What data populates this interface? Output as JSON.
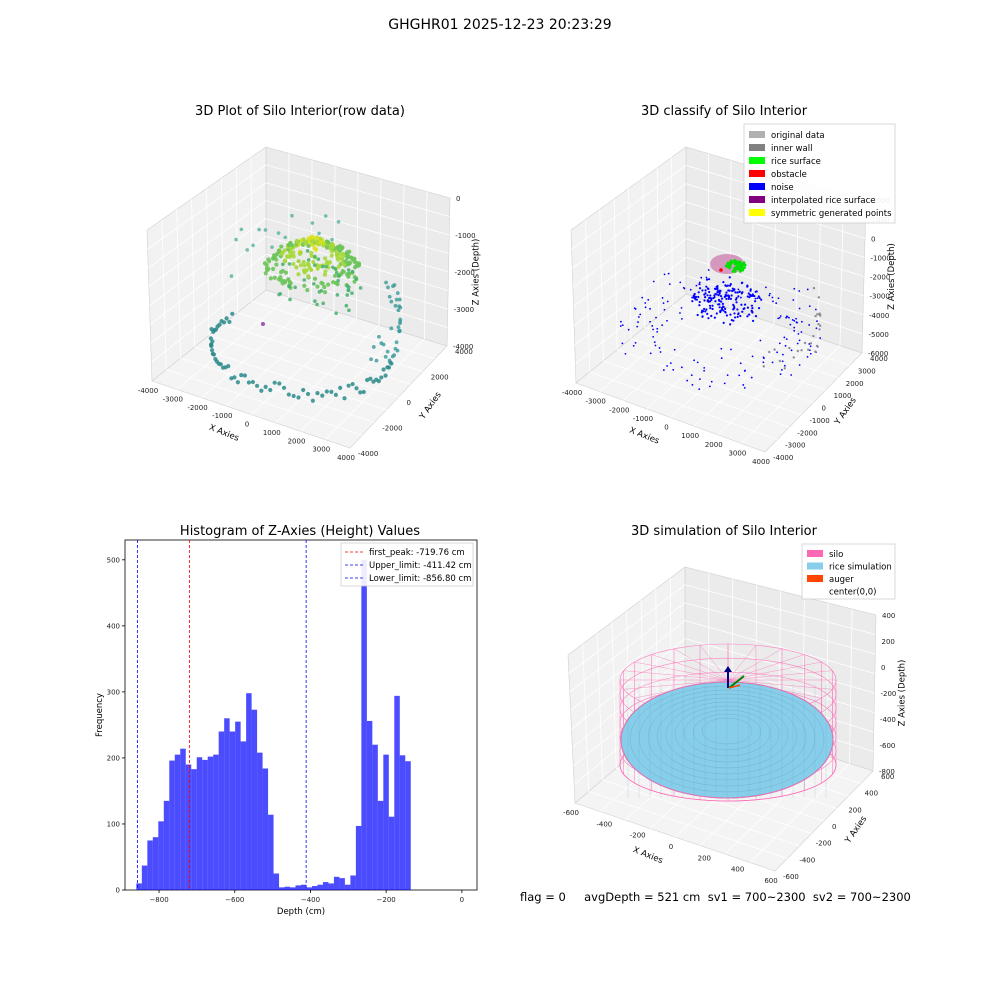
{
  "suptitle": "GHGHR01 2025-12-23 20:23:29",
  "status_text": "flag = 0     avgDepth = 521 cm  sv1 = 700~2300  sv2 = 700~2300",
  "panels": {
    "raw": {
      "title": "3D Plot of Silo Interior(row data)",
      "xlabel": "X Axies",
      "ylabel": "Y Axies",
      "zlabel": "Z Axies (Depth)",
      "xticks": [
        "-4000",
        "-3000",
        "-2000",
        "-1000",
        "0",
        "1000",
        "2000",
        "3000",
        "4000"
      ],
      "yticks": [
        "-4000",
        "-2000",
        "0",
        "2000",
        "4000"
      ],
      "zticks": [
        "0",
        "-1000",
        "-2000",
        "-3000",
        "-4000"
      ]
    },
    "classify": {
      "title": "3D classify of Silo Interior",
      "xlabel": "X Axies",
      "ylabel": "Y Axies",
      "zlabel": "Z Axies (Depth)",
      "xticks": [
        "-4000",
        "-3000",
        "-2000",
        "-1000",
        "0",
        "1000",
        "2000",
        "3000",
        "4000"
      ],
      "yticks": [
        "-4000",
        "-3000",
        "-2000",
        "-1000",
        "0",
        "1000",
        "2000",
        "3000",
        "4000"
      ],
      "zticks": [
        "2000",
        "1000",
        "0",
        "-1000",
        "-2000",
        "-3000",
        "-4000",
        "-5000",
        "-6000"
      ],
      "legend": [
        {
          "label": "original data",
          "color": "#b0b0b0"
        },
        {
          "label": "inner wall",
          "color": "#808080"
        },
        {
          "label": "rice surface",
          "color": "#00ff00"
        },
        {
          "label": "obstacle",
          "color": "#ff0000"
        },
        {
          "label": "noise",
          "color": "#0000ff"
        },
        {
          "label": "interpolated rice surface",
          "color": "#800080"
        },
        {
          "label": "symmetric generated points",
          "color": "#ffff00"
        }
      ]
    },
    "simulation": {
      "title": "3D simulation of Silo Interior",
      "xlabel": "X Axies",
      "ylabel": "Y Axies",
      "zlabel": "Z Axies (Depth)",
      "xticks": [
        "-600",
        "-400",
        "-200",
        "0",
        "200",
        "400",
        "600"
      ],
      "yticks": [
        "-600",
        "-400",
        "-200",
        "0",
        "200",
        "400",
        "600"
      ],
      "zticks": [
        "400",
        "200",
        "0",
        "-200",
        "-400",
        "-600",
        "-800"
      ],
      "legend": [
        {
          "label": "silo",
          "color": "#ff69b4"
        },
        {
          "label": "rice simulation",
          "color": "#87ceeb"
        },
        {
          "label": "auger",
          "color": "#ff4500"
        },
        {
          "label": "center(0,0)",
          "color": ""
        }
      ]
    }
  },
  "chart_data": {
    "type": "bar",
    "title": "Histogram of Z-Axies (Height) Values",
    "xlabel": "Depth (cm)",
    "ylabel": "Frequency",
    "xlim": [
      -890,
      40
    ],
    "ylim": [
      0,
      530
    ],
    "xticks": [
      -800,
      -600,
      -400,
      -200,
      0
    ],
    "yticks": [
      0,
      100,
      200,
      300,
      400,
      500
    ],
    "bar_color": "#0000ff",
    "bin_start": -860,
    "bin_width": 14.5,
    "values": [
      10,
      37,
      75,
      80,
      104,
      135,
      196,
      205,
      214,
      190,
      183,
      201,
      197,
      202,
      205,
      240,
      260,
      240,
      255,
      225,
      298,
      273,
      208,
      184,
      114,
      25,
      4,
      5,
      4,
      7,
      8,
      4,
      6,
      8,
      12,
      10,
      20,
      18,
      8,
      22,
      97,
      500,
      256,
      220,
      135,
      205,
      111,
      294,
      204,
      195
    ],
    "reference_lines": [
      {
        "label": "first_peak: -719.76 cm",
        "value": -719.76,
        "color": "#ff0000"
      },
      {
        "label": "Upper_limit: -411.42 cm",
        "value": -411.42,
        "color": "#0000ff"
      },
      {
        "label": "Lower_limit: -856.80 cm",
        "value": -856.8,
        "color": "#0000ff"
      }
    ],
    "legend_position": "upper right"
  }
}
